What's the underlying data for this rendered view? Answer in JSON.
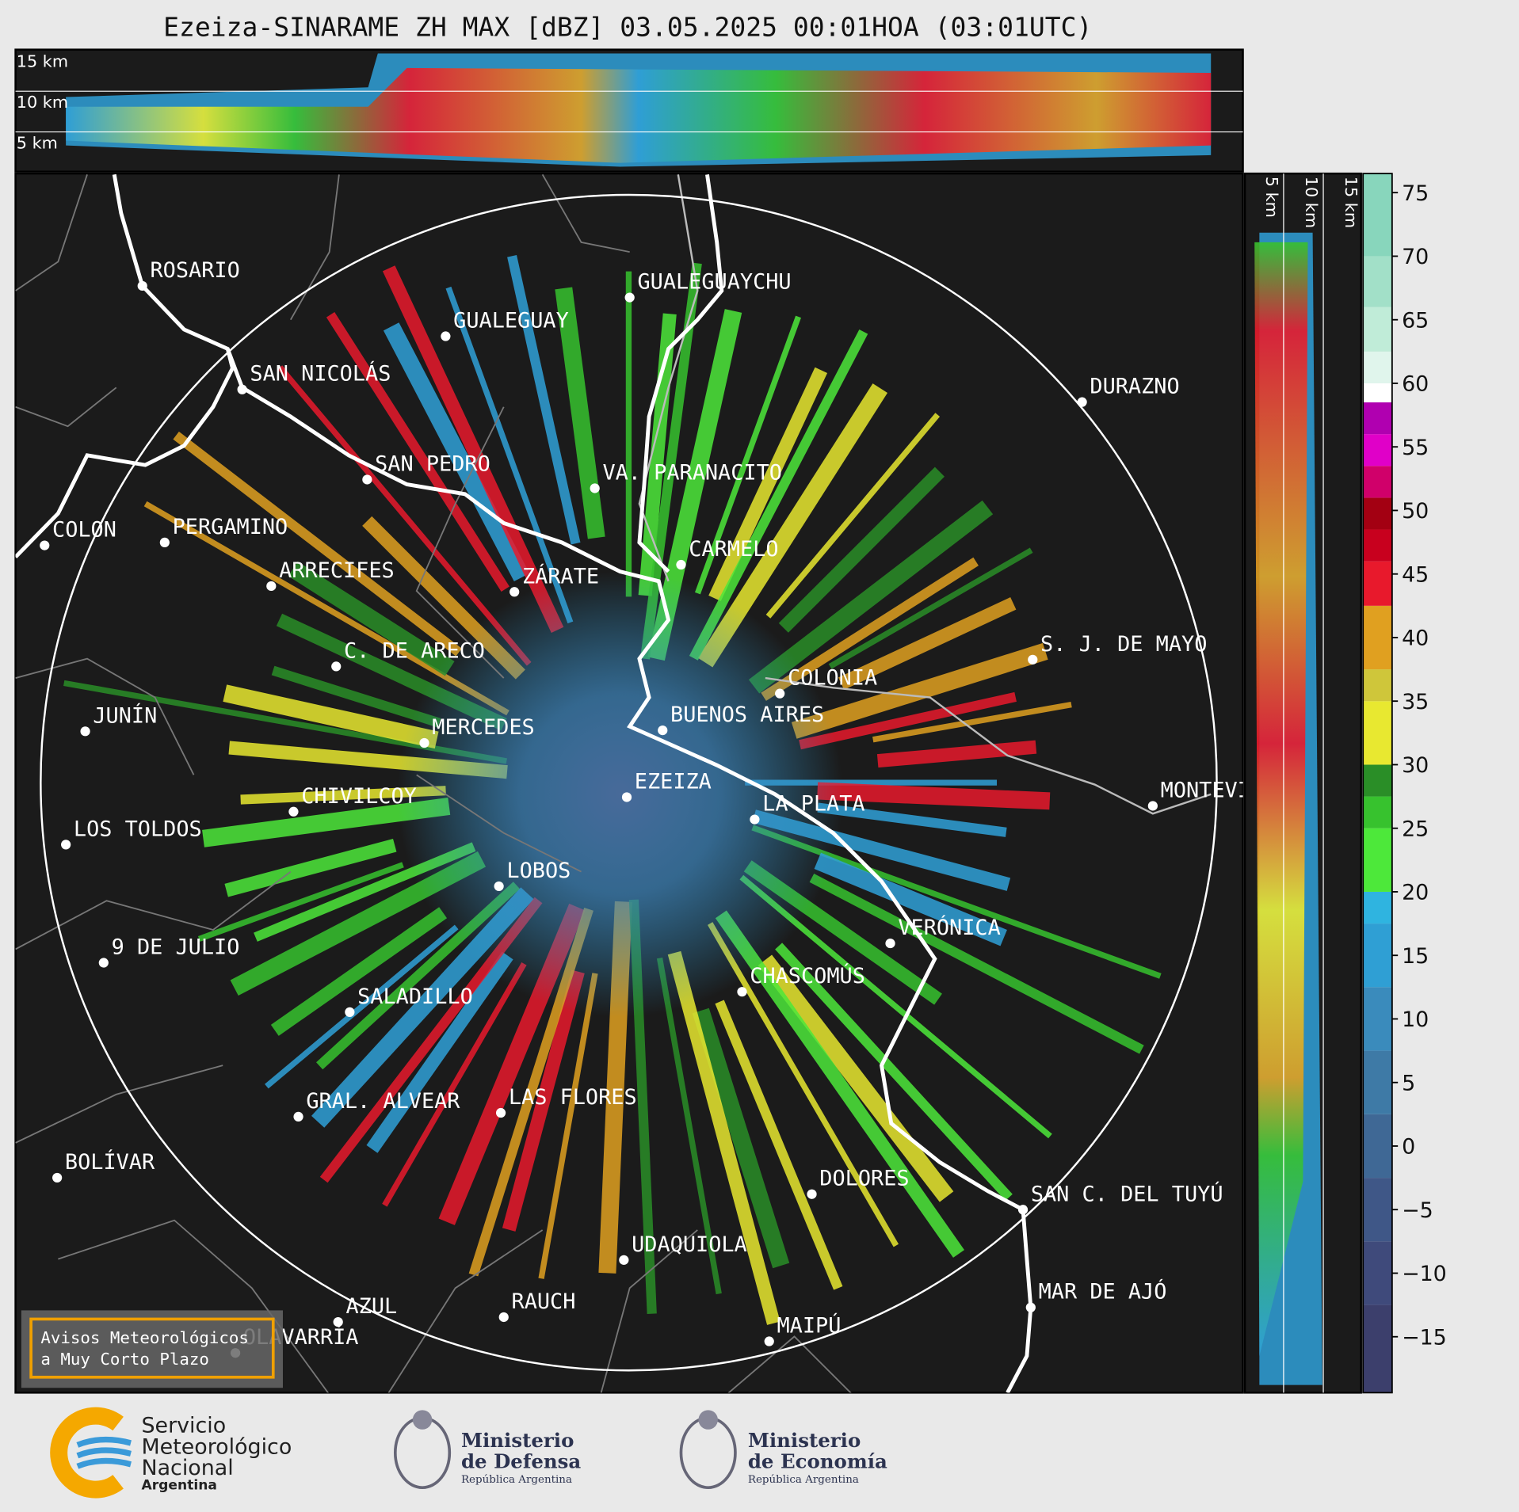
{
  "title": "Ezeiza-SINARAME ZH MAX [dBZ] 03.05.2025 00:01HOA (03:01UTC)",
  "top_panel": {
    "levels": [
      "15 km",
      "10 km",
      "5 km"
    ]
  },
  "side_panel": {
    "levels": [
      "5 km",
      "10 km",
      "15 km"
    ]
  },
  "cities": [
    "ROSARIO",
    "GUALEGUAYCHU",
    "GUALEGUAY",
    "SAN NICOLÁS",
    "DURAZNO",
    "SAN PEDRO",
    "VA. PARANACITO",
    "COLON",
    "PERGAMINO",
    "CARMELO",
    "ARRECIFES",
    "ZÁRATE",
    "S. J. DE MAYO",
    "C. DE ARECO",
    "COLONIA",
    "BUENOS AIRES",
    "JUNÍN",
    "MERCEDES",
    "EZEIZA",
    "CHIVILCOY",
    "MONTEVIDEO",
    "LA PLATA",
    "LOS TOLDOS",
    "LOBOS",
    "VERÓNICA",
    "9 DE JULIO",
    "CHASCOMÚS",
    "SALADILLO",
    "GRAL. ALVEAR",
    "LAS FLORES",
    "BOLÍVAR",
    "DOLORES",
    "SAN C. DEL TUYÚ",
    "UDAQUIOLA",
    "MAR DE AJÓ",
    "AZUL",
    "RAUCH",
    "OLAVARRÍA",
    "MAIPÚ"
  ],
  "notice": [
    "Avisos Meteorológicos",
    "a Muy Corto Plazo"
  ],
  "colorbar": {
    "lim": [
      -19.4,
      76.5
    ],
    "bounds": [
      -19.4,
      -12.5,
      -7.5,
      -2.5,
      2.5,
      7.5,
      12.5,
      17.5,
      20,
      25,
      27.5,
      30,
      35,
      37.5,
      42.5,
      46,
      48.5,
      51,
      53.5,
      56,
      58.5,
      60,
      62.5,
      66,
      70,
      76.5
    ],
    "colors": [
      "#3c3f6c",
      "#3f4a7b",
      "#3f5787",
      "#3f6895",
      "#3e7aa6",
      "#3a8bbc",
      "#2f9fd4",
      "#2fb4e0",
      "#4de83a",
      "#37c22e",
      "#2a8e27",
      "#e8e830",
      "#cfc63a",
      "#e0a020",
      "#e8192c",
      "#c8001e",
      "#a30012",
      "#d0006a",
      "#e000c8",
      "#b000b0",
      "#ffffff",
      "#e0f5ec",
      "#c0ecd8",
      "#a2e0c8",
      "#88d6bc"
    ],
    "ticks": [
      75,
      70,
      65,
      60,
      55,
      50,
      45,
      40,
      35,
      30,
      25,
      20,
      15,
      10,
      5,
      0,
      {
        "value": -5,
        "label": "−5"
      },
      {
        "value": -10,
        "label": "−10"
      },
      {
        "value": -15,
        "label": "−15"
      }
    ]
  },
  "logos": {
    "smn": [
      "Servicio",
      "Meteorológico",
      "Nacional",
      "Argentina"
    ],
    "defensa": [
      "Ministerio",
      "de Defensa",
      "República Argentina"
    ],
    "economia": [
      "Ministerio",
      "de Economía",
      "República Argentina"
    ]
  }
}
